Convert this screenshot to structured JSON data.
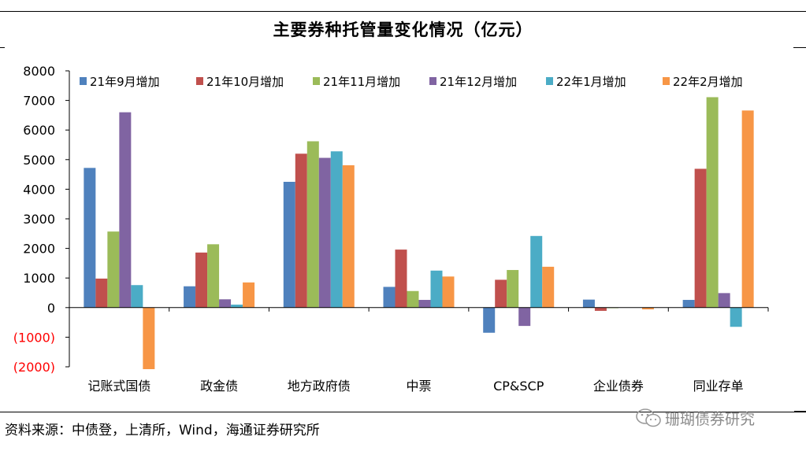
{
  "title": "主要券种托管量变化情况（亿元）",
  "source": "资料来源：中债登，上清所，Wind，海通证券研究所",
  "watermark": "珊瑚债券研究",
  "watermark_icon": "wechat-icon",
  "chart_data": {
    "type": "bar",
    "title": "主要券种托管量变化情况（亿元）",
    "categories": [
      "记账式国债",
      "政金债",
      "地方政府债",
      "中票",
      "CP&SCP",
      "企业债券",
      "同业存单"
    ],
    "series": [
      {
        "name": "21年9月增加",
        "color": "#4f81bd",
        "values": [
          4720,
          720,
          4250,
          700,
          -850,
          270,
          260
        ]
      },
      {
        "name": "21年10月增加",
        "color": "#c0504d",
        "values": [
          980,
          1860,
          5200,
          1960,
          940,
          -110,
          4690
        ]
      },
      {
        "name": "21年11月增加",
        "color": "#9bbb59",
        "values": [
          2570,
          2140,
          5620,
          560,
          1270,
          -20,
          7110
        ]
      },
      {
        "name": "21年12月增加",
        "color": "#8064a2",
        "values": [
          6600,
          280,
          5060,
          260,
          -620,
          0,
          490
        ]
      },
      {
        "name": "22年1月增加",
        "color": "#4bacc6",
        "values": [
          760,
          100,
          5280,
          1250,
          2420,
          0,
          -650
        ]
      },
      {
        "name": "22年2月增加",
        "color": "#f79646",
        "values": [
          -2080,
          850,
          4810,
          1050,
          1380,
          -60,
          6660
        ]
      }
    ],
    "ylim": [
      -2000,
      8000
    ],
    "yticks": [
      8000,
      7000,
      6000,
      5000,
      4000,
      3000,
      2000,
      1000,
      0,
      -1000,
      -2000
    ],
    "ytick_labels": [
      "8000",
      "7000",
      "6000",
      "5000",
      "4000",
      "3000",
      "2000",
      "1000",
      "0",
      "(1000)",
      "(2000)"
    ],
    "negative_tick_color": "#ff0000",
    "grid": false,
    "legend_position": "top"
  }
}
